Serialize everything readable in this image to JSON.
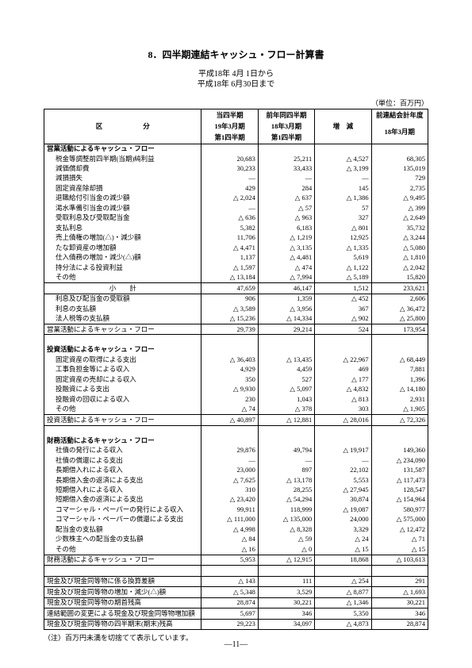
{
  "title": "8．四半期連結キャッシュ・フロー計算書",
  "period": {
    "from": "平成18年 4月 1日から",
    "to": "平成18年 6月30日まで"
  },
  "unit": "（単位：百万円）",
  "header": {
    "kubun": "区　　　　　　分",
    "col1a": "当四半期",
    "col1b": "19年3月期",
    "col1c": "第1四半期",
    "col2a": "前年同四半期",
    "col2b": "18年3月期",
    "col2c": "第1四半期",
    "col3": "増　減",
    "col4a": "前連結会計年度",
    "col4b": "18年3月期"
  },
  "sections": [
    {
      "type": "section",
      "label": "営業活動によるキャッシュ・フロー"
    },
    {
      "type": "row",
      "label": "税金等調整前四半期(当期)純利益",
      "v": [
        "20,683",
        "25,211",
        "△ 4,527",
        "68,305"
      ]
    },
    {
      "type": "row",
      "label": "減価償却費",
      "v": [
        "30,233",
        "33,433",
        "△ 3,199",
        "135,019"
      ]
    },
    {
      "type": "row",
      "label": "減損損失",
      "v": [
        "―",
        "―",
        "―",
        "729"
      ]
    },
    {
      "type": "row",
      "label": "固定資産除却損",
      "v": [
        "429",
        "284",
        "145",
        "2,735"
      ]
    },
    {
      "type": "row",
      "label": "退職給付引当金の減少額",
      "v": [
        "△ 2,024",
        "△ 637",
        "△ 1,386",
        "△ 9,495"
      ]
    },
    {
      "type": "row",
      "label": "渇水準備引当金の減少額",
      "v": [
        "―",
        "△ 57",
        "57",
        "△ 399"
      ]
    },
    {
      "type": "row",
      "label": "受取利息及び受取配当金",
      "v": [
        "△ 636",
        "△ 963",
        "327",
        "△ 2,649"
      ]
    },
    {
      "type": "row",
      "label": "支払利息",
      "v": [
        "5,382",
        "6,183",
        "△ 801",
        "35,732"
      ]
    },
    {
      "type": "row",
      "label": "売上債権の増加(△)・減少額",
      "v": [
        "11,706",
        "△ 1,219",
        "12,925",
        "△ 3,244"
      ]
    },
    {
      "type": "row",
      "label": "たな卸資産の増加額",
      "v": [
        "△ 4,471",
        "△ 3,135",
        "△ 1,335",
        "△ 5,080"
      ]
    },
    {
      "type": "row",
      "label": "仕入債務の増加・減少(△)額",
      "v": [
        "1,137",
        "△ 4,481",
        "5,619",
        "△ 1,810"
      ]
    },
    {
      "type": "row",
      "label": "持分法による投資利益",
      "v": [
        "△ 1,597",
        "△ 474",
        "△ 1,122",
        "△ 2,042"
      ]
    },
    {
      "type": "row",
      "label": "その他",
      "v": [
        "△ 13,184",
        "△ 7,994",
        "△ 5,189",
        "15,820"
      ]
    },
    {
      "type": "subtotal-top subtotal-bottom center-label",
      "label": "小　　計",
      "v": [
        "47,659",
        "46,147",
        "1,512",
        "233,621"
      ]
    },
    {
      "type": "row",
      "label": "利息及び配当金の受取額",
      "v": [
        "906",
        "1,359",
        "△ 452",
        "2,606"
      ]
    },
    {
      "type": "row",
      "label": "利息の支払額",
      "v": [
        "△ 3,589",
        "△ 3,956",
        "367",
        "△ 36,472"
      ]
    },
    {
      "type": "row",
      "label": "法人税等の支払額",
      "v": [
        "△ 15,236",
        "△ 14,334",
        "△ 902",
        "△ 25,800"
      ]
    },
    {
      "type": "subtotal-both",
      "label": "営業活動によるキャッシュ・フロー",
      "v": [
        "29,739",
        "29,214",
        "524",
        "173,954"
      ]
    },
    {
      "type": "spacer"
    },
    {
      "type": "section",
      "label": "投資活動によるキャッシュ・フロー"
    },
    {
      "type": "row",
      "label": "固定資産の取得による支出",
      "v": [
        "△ 36,403",
        "△ 13,435",
        "△ 22,967",
        "△ 68,449"
      ]
    },
    {
      "type": "row",
      "label": "工事負担金等による収入",
      "v": [
        "4,929",
        "4,459",
        "469",
        "7,881"
      ]
    },
    {
      "type": "row",
      "label": "固定資産の売却による収入",
      "v": [
        "350",
        "527",
        "△ 177",
        "1,396"
      ]
    },
    {
      "type": "row",
      "label": "投融資による支出",
      "v": [
        "△ 9,930",
        "△ 5,097",
        "△ 4,832",
        "△ 14,180"
      ]
    },
    {
      "type": "row",
      "label": "投融資の回収による収入",
      "v": [
        "230",
        "1,043",
        "△ 813",
        "2,931"
      ]
    },
    {
      "type": "row",
      "label": "その他",
      "v": [
        "△ 74",
        "△ 378",
        "303",
        "△ 1,905"
      ]
    },
    {
      "type": "subtotal-both",
      "label": "投資活動によるキャッシュ・フロー",
      "v": [
        "△ 40,897",
        "△ 12,881",
        "△ 28,016",
        "△ 72,326"
      ]
    },
    {
      "type": "spacer"
    },
    {
      "type": "section",
      "label": "財務活動によるキャッシュ・フロー"
    },
    {
      "type": "row",
      "label": "社債の発行による収入",
      "v": [
        "29,876",
        "49,794",
        "△ 19,917",
        "149,360"
      ]
    },
    {
      "type": "row",
      "label": "社債の償還による支出",
      "v": [
        "―",
        "―",
        "―",
        "△ 234,090"
      ]
    },
    {
      "type": "row",
      "label": "長期借入れによる収入",
      "v": [
        "23,000",
        "897",
        "22,102",
        "131,587"
      ]
    },
    {
      "type": "row",
      "label": "長期借入金の返済による支出",
      "v": [
        "△ 7,625",
        "△ 13,178",
        "5,553",
        "△ 117,473"
      ]
    },
    {
      "type": "row",
      "label": "短期借入れによる収入",
      "v": [
        "310",
        "28,255",
        "△ 27,945",
        "128,547"
      ]
    },
    {
      "type": "row",
      "label": "短期借入金の返済による支出",
      "v": [
        "△ 23,420",
        "△ 54,294",
        "30,874",
        "△ 154,964"
      ]
    },
    {
      "type": "row",
      "label": "コマーシャル・ペーパーの発行による収入",
      "v": [
        "99,911",
        "118,999",
        "△ 19,087",
        "580,977"
      ]
    },
    {
      "type": "row",
      "label": "コマーシャル・ペーパーの償還による支出",
      "v": [
        "△ 111,000",
        "△ 135,000",
        "24,000",
        "△ 575,000"
      ]
    },
    {
      "type": "row",
      "label": "配当金の支払額",
      "v": [
        "△ 4,998",
        "△ 8,328",
        "3,329",
        "△ 12,472"
      ]
    },
    {
      "type": "row",
      "label": "少数株主への配当金の支払額",
      "v": [
        "△ 84",
        "△ 59",
        "△ 24",
        "△ 71"
      ]
    },
    {
      "type": "row",
      "label": "その他",
      "v": [
        "△ 16",
        "△ 0",
        "△ 15",
        "△ 15"
      ]
    },
    {
      "type": "subtotal-both",
      "label": "財務活動によるキャッシュ・フロー",
      "v": [
        "5,953",
        "△ 12,915",
        "18,868",
        "△ 103,613"
      ]
    },
    {
      "type": "spacer"
    },
    {
      "type": "subtotal-both",
      "label": "現金及び現金同等物に係る換算差額",
      "v": [
        "△ 143",
        "111",
        "△ 254",
        "291"
      ]
    },
    {
      "type": "subtotal-bottom",
      "label": "現金及び現金同等物の増加・減少(△)額",
      "v": [
        "△ 5,348",
        "3,529",
        "△ 8,877",
        "△ 1,693"
      ]
    },
    {
      "type": "subtotal-bottom",
      "label": "現金及び現金同等物の期首残高",
      "v": [
        "28,874",
        "30,221",
        "△ 1,346",
        "30,221"
      ]
    },
    {
      "type": "subtotal-bottom",
      "label": "連結範囲の変更による現金及び現金同等物増加額",
      "v": [
        "5,697",
        "346",
        "5,350",
        "346"
      ]
    },
    {
      "type": "closing",
      "label": "現金及び現金同等物の四半期末(期末)残高",
      "v": [
        "29,223",
        "34,097",
        "△ 4,873",
        "28,874"
      ]
    }
  ],
  "note": "（注）百万円未満を切捨てて表示しています。",
  "pagenum": "―11―"
}
